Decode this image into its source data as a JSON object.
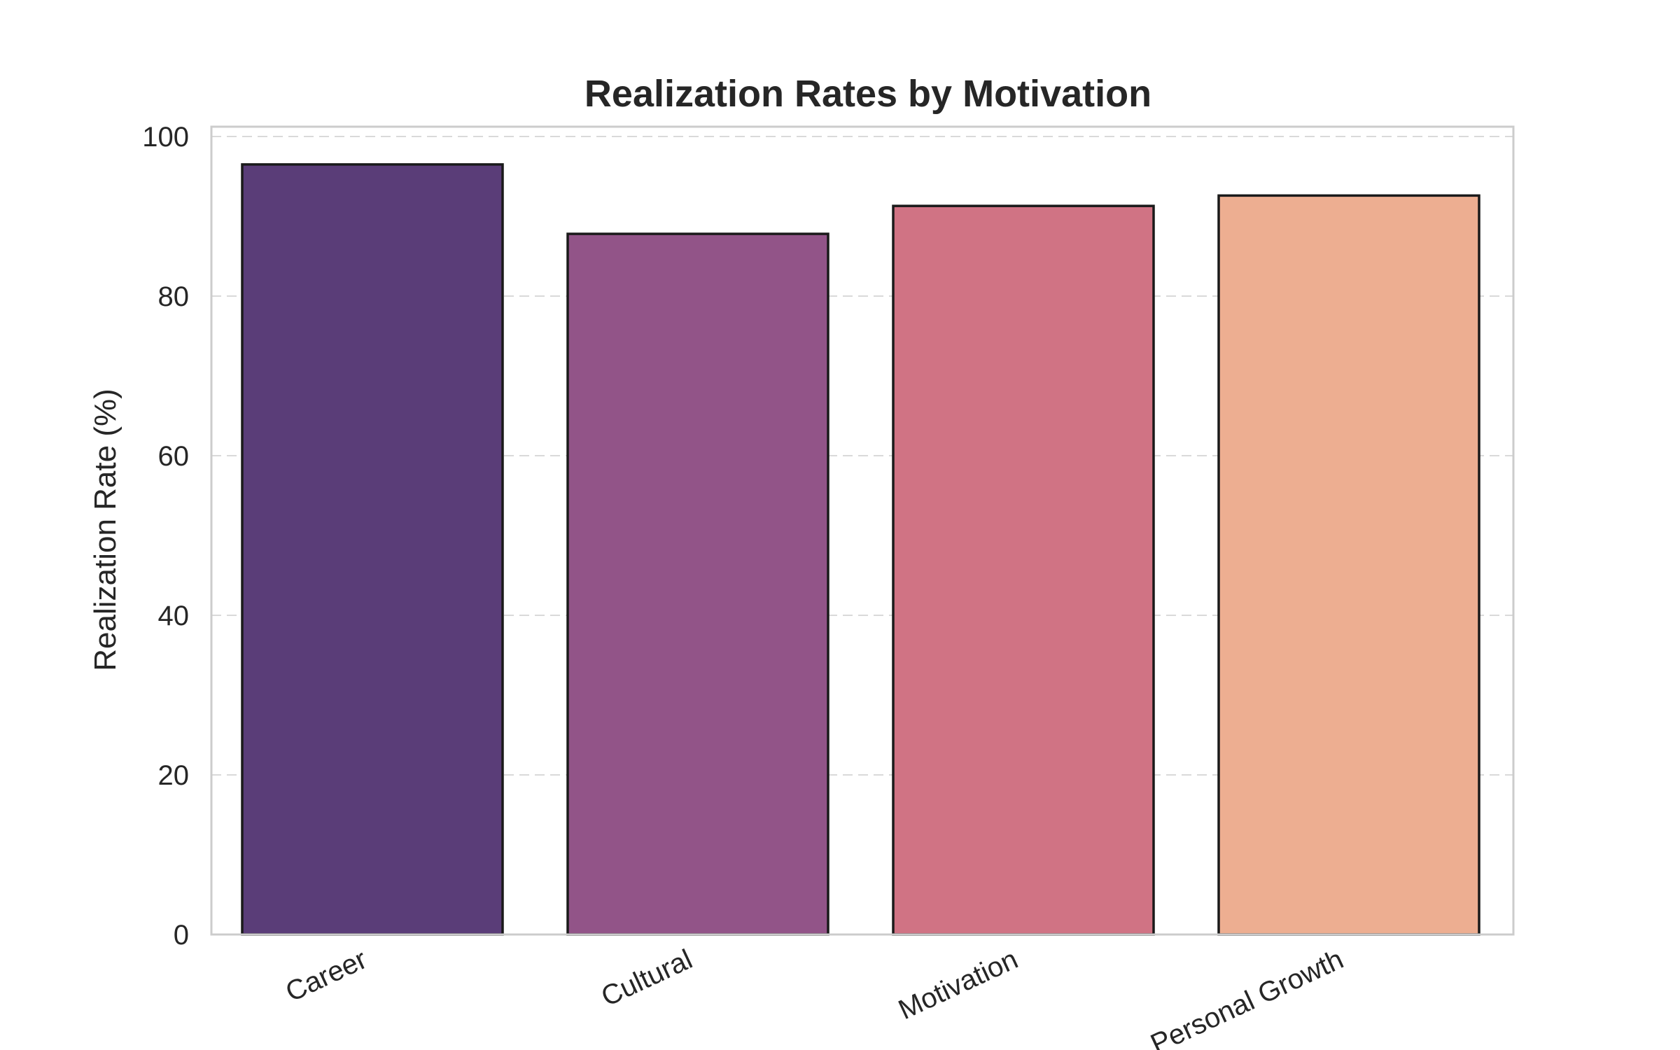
{
  "chart_data": {
    "type": "bar",
    "title": "Realization Rates by Motivation",
    "xlabel": "",
    "ylabel": "Realization Rate (%)",
    "categories": [
      "Career",
      "Cultural",
      "Motivation",
      "Personal Growth"
    ],
    "values": [
      96.5,
      87.8,
      91.3,
      92.6
    ],
    "colors": [
      "#5a3d78",
      "#925488",
      "#d07384",
      "#edae91"
    ],
    "ylim": [
      0,
      100
    ],
    "yticks": [
      0,
      20,
      40,
      60,
      80,
      100
    ],
    "grid": "y-dashed"
  }
}
